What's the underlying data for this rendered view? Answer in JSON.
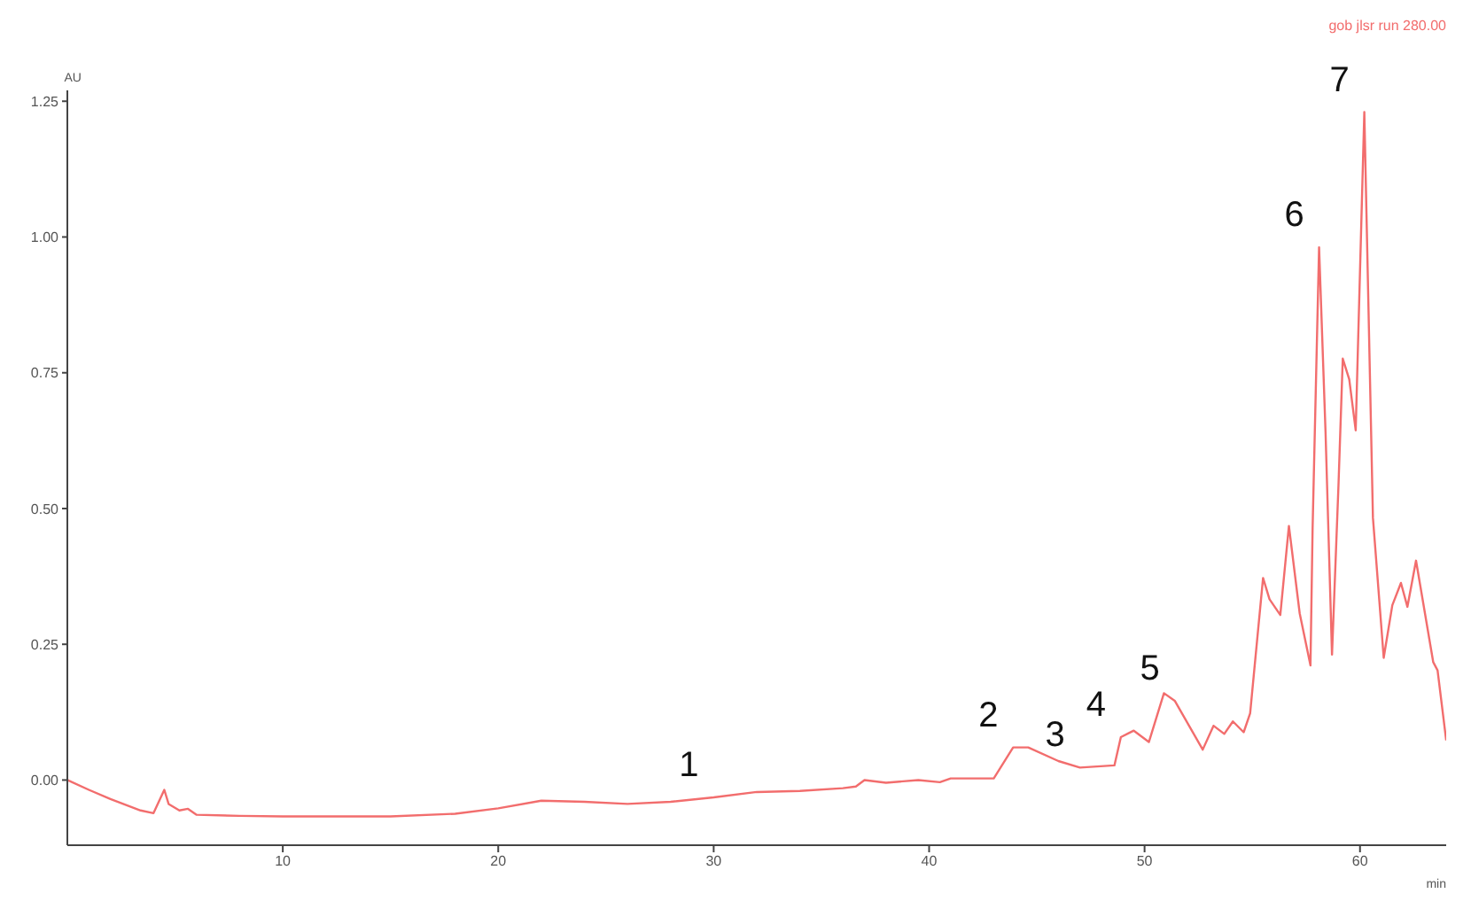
{
  "chart_data": {
    "type": "line",
    "xlabel": "min",
    "ylabel": "AU",
    "x": [
      0,
      1,
      2,
      3.4,
      4,
      4.5,
      4.7,
      5.2,
      5.6,
      6,
      8,
      10,
      12,
      15,
      18,
      20,
      22,
      24,
      26,
      28,
      30,
      32,
      34,
      36,
      36.6,
      37,
      38,
      39.5,
      40.5,
      41,
      43,
      43.9,
      44.6,
      46,
      47,
      48.6,
      48.9,
      49.5,
      50.2,
      50.9,
      51.4,
      52.7,
      53.2,
      53.7,
      54.1,
      54.6,
      54.9,
      55.5,
      55.8,
      56.3,
      56.7,
      57.2,
      57.7,
      57.8,
      58.1,
      58.4,
      58.7,
      59.0,
      59.2,
      59.5,
      59.8,
      60.2,
      60.6,
      61.1,
      61.5,
      61.9,
      62.2,
      62.6,
      63.4,
      63.6,
      64.0
    ],
    "series": [
      {
        "name": "gob jlsr run 280.00",
        "color": "#f26d6d",
        "values": [
          0,
          -0.018,
          -0.035,
          -0.056,
          -0.061,
          -0.018,
          -0.044,
          -0.056,
          -0.053,
          -0.064,
          -0.066,
          -0.067,
          -0.067,
          -0.067,
          -0.062,
          -0.052,
          -0.038,
          -0.04,
          -0.044,
          -0.04,
          -0.032,
          -0.022,
          -0.02,
          -0.015,
          -0.012,
          0.0,
          -0.005,
          0.0,
          -0.004,
          0.003,
          0.003,
          0.06,
          0.06,
          0.035,
          0.023,
          0.027,
          0.079,
          0.091,
          0.07,
          0.16,
          0.146,
          0.056,
          0.1,
          0.085,
          0.108,
          0.088,
          0.123,
          0.372,
          0.333,
          0.304,
          0.468,
          0.307,
          0.211,
          0.465,
          0.981,
          0.641,
          0.231,
          0.542,
          0.776,
          0.738,
          0.644,
          1.23,
          0.483,
          0.225,
          0.322,
          0.363,
          0.319,
          0.404,
          0.217,
          0.202,
          0.073
        ]
      }
    ],
    "xlim": [
      0,
      64
    ],
    "xticks": [
      10,
      20,
      30,
      40,
      50,
      60
    ],
    "ylim": [
      -0.12,
      1.27
    ],
    "yticks": [
      {
        "value": 0,
        "label": "0.00"
      },
      {
        "value": 0.25,
        "label": "0.25"
      },
      {
        "value": 0.5,
        "label": "0.50"
      },
      {
        "value": 0.75,
        "label": "0.75"
      },
      {
        "value": 1,
        "label": "1.00"
      },
      {
        "value": 1.25,
        "label": "1.25"
      }
    ],
    "annotations": [
      {
        "text": "1",
        "x": 30,
        "y": -0.032
      },
      {
        "text": "2",
        "x": 43.9,
        "y": 0.06
      },
      {
        "text": "3",
        "x": 47,
        "y": 0.023
      },
      {
        "text": "4",
        "x": 48.9,
        "y": 0.079
      },
      {
        "text": "5",
        "x": 51.4,
        "y": 0.146
      },
      {
        "text": "6",
        "x": 58.1,
        "y": 0.981
      },
      {
        "text": "7",
        "x": 60.2,
        "y": 1.23
      }
    ],
    "grid": false,
    "legend": "top right",
    "marker": "none",
    "line_style": "solid"
  }
}
